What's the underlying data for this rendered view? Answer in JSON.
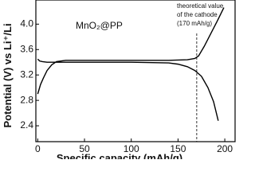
{
  "chart_data": {
    "type": "line",
    "xlabel": "Specific capacity (mAh/g)",
    "ylabel": "Potential (V) vs Li⁺/Li",
    "label": "MnO₂@PP",
    "annotation": {
      "x": 170,
      "lines": [
        "theoretical value",
        "of the cathode",
        "(170 mAh/g)"
      ]
    },
    "xlim": [
      -2,
      211
    ],
    "ylim": [
      2.15,
      4.38
    ],
    "xticks": [
      0,
      50,
      100,
      150,
      200
    ],
    "yticks": [
      2.4,
      2.8,
      3.2,
      3.6,
      {
        "value": 4,
        "label": "4.0"
      }
    ],
    "series": [
      {
        "color": "#000000",
        "x": [
          0,
          3,
          6,
          10,
          15,
          20,
          30,
          60,
          100,
          140,
          160,
          168,
          172,
          178,
          185,
          192,
          199
        ],
        "values": [
          2.9,
          3.05,
          3.15,
          3.27,
          3.36,
          3.41,
          3.43,
          3.43,
          3.43,
          3.43,
          3.44,
          3.46,
          3.5,
          3.65,
          3.85,
          4.05,
          4.26
        ]
      },
      {
        "color": "#000000",
        "x": [
          0,
          2,
          5,
          10,
          20,
          60,
          100,
          140,
          150,
          160,
          168,
          175,
          182,
          188,
          193
        ],
        "values": [
          3.45,
          3.42,
          3.41,
          3.4,
          3.4,
          3.4,
          3.4,
          3.39,
          3.37,
          3.33,
          3.27,
          3.18,
          3.0,
          2.78,
          2.48
        ]
      }
    ]
  }
}
